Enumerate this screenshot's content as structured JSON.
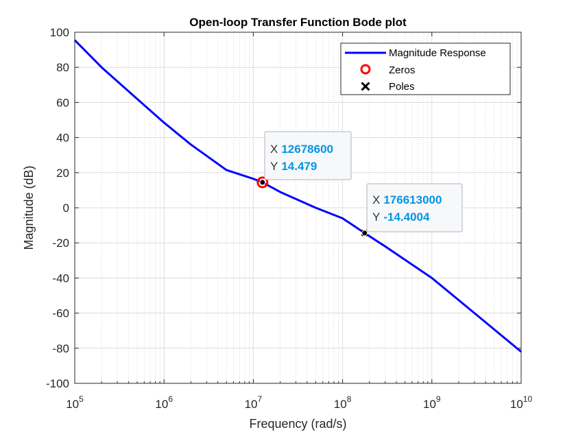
{
  "chart_data": {
    "type": "line",
    "title": "Open-loop Transfer Function Bode plot",
    "xlabel": "Frequency (rad/s)",
    "ylabel": "Magnitude (dB)",
    "xscale": "log",
    "xlim": [
      100000,
      10000000000
    ],
    "ylim": [
      -100,
      100
    ],
    "grid": true,
    "minor_grid": true,
    "legend_position": "top-right",
    "x_tick_labels": [
      {
        "base": "10",
        "exp": "5",
        "value": 100000
      },
      {
        "base": "10",
        "exp": "6",
        "value": 1000000
      },
      {
        "base": "10",
        "exp": "7",
        "value": 10000000
      },
      {
        "base": "10",
        "exp": "8",
        "value": 100000000
      },
      {
        "base": "10",
        "exp": "9",
        "value": 1000000000
      },
      {
        "base": "10",
        "exp": "10",
        "value": 10000000000
      }
    ],
    "y_ticks": [
      100,
      80,
      60,
      40,
      20,
      0,
      -20,
      -40,
      -60,
      -80,
      -100
    ],
    "y_tick_labels": [
      "100",
      "80",
      "60",
      "40",
      "20",
      "0",
      "-20",
      "-40",
      "-60",
      "-80",
      "-100"
    ],
    "series": [
      {
        "name": "Magnitude Response",
        "kind": "line",
        "color": "#0000ff",
        "x": [
          100000,
          200000,
          500000,
          1000000,
          2000000,
          5000000,
          10000000,
          12678600,
          20000000,
          50000000,
          100000000,
          176613000,
          300000000,
          1000000000,
          3000000000,
          10000000000
        ],
        "y": [
          95.5,
          80,
          62,
          48.5,
          36,
          21.5,
          16.5,
          14.479,
          9,
          0,
          -6,
          -14.4004,
          -22,
          -40,
          -60,
          -82
        ]
      },
      {
        "name": "Zeros",
        "kind": "marker",
        "marker": "circle",
        "color": "#ff0000",
        "x": [
          12678600
        ],
        "y": [
          14.479
        ]
      },
      {
        "name": "Poles",
        "kind": "marker",
        "marker": "x",
        "color": "#000000",
        "x": [
          176613000
        ],
        "y": [
          -14.4004
        ]
      }
    ],
    "annotations": [
      {
        "x_key": "X",
        "x_text": "12678600",
        "y_key": "Y",
        "y_text": "14.479",
        "x": 12678600,
        "y": 14.479
      },
      {
        "x_key": "X",
        "x_text": "176613000",
        "y_key": "Y",
        "y_text": "-14.4004",
        "x": 176613000,
        "y": -14.4004
      }
    ]
  }
}
